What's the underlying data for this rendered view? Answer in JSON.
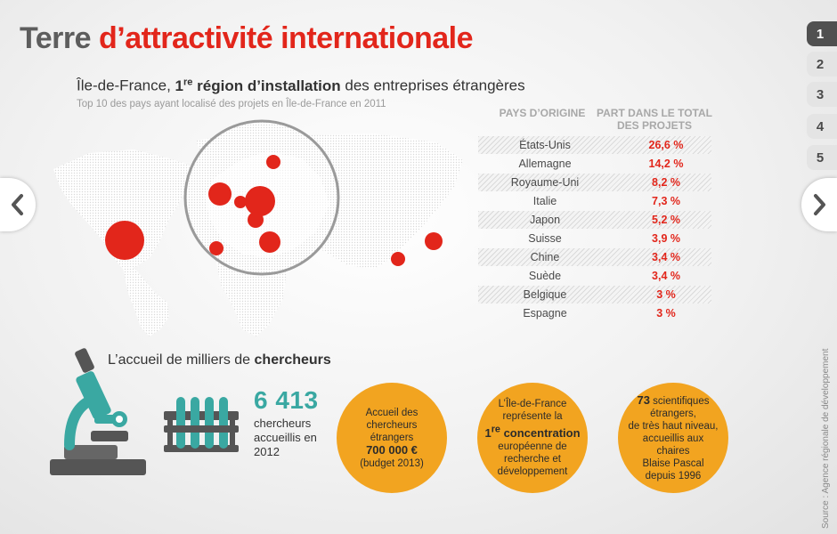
{
  "title": {
    "part1": "Terre ",
    "part2": "d’attractivité internationale"
  },
  "nav": {
    "tabs": [
      "1",
      "2",
      "3",
      "4",
      "5"
    ],
    "active_tab": "1"
  },
  "map_section": {
    "heading_before": "Île-de-France, ",
    "heading_num": "1",
    "heading_sup": "re",
    "heading_bold": " région d’installation",
    "heading_after": " des entreprises étrangères",
    "subtitle": "Top 10 des pays ayant localisé des projets en Île-de-France en 2011"
  },
  "table": {
    "header_country": "PAYS D’ORIGINE",
    "header_share": "PART DANS LE TOTAL DES PROJETS",
    "rows": [
      {
        "country": "États-Unis",
        "share": "26,6 %"
      },
      {
        "country": "Allemagne",
        "share": "14,2 %"
      },
      {
        "country": "Royaume-Uni",
        "share": "8,2 %"
      },
      {
        "country": "Italie",
        "share": "7,3 %"
      },
      {
        "country": "Japon",
        "share": "5,2 %"
      },
      {
        "country": "Suisse",
        "share": "3,9 %"
      },
      {
        "country": "Chine",
        "share": "3,4 %"
      },
      {
        "country": "Suède",
        "share": "3,4 %"
      },
      {
        "country": "Belgique",
        "share": "3 %"
      },
      {
        "country": "Espagne",
        "share": "3 %"
      }
    ]
  },
  "research": {
    "heading_normal": "L’accueil de milliers de ",
    "heading_bold": "chercheurs",
    "count": "6 413",
    "count_desc": "chercheurs accueillis en 2012"
  },
  "circles": [
    {
      "line1": "Accueil des",
      "line2": "chercheurs",
      "line3": "étrangers",
      "bold": "700 000 €",
      "line4": "(budget 2013)"
    },
    {
      "line1": "L’Île-de-France",
      "line2": "représente la",
      "num": "1",
      "sup": "re",
      "bold": " concentration",
      "line3": "européenne de",
      "line4": "recherche et",
      "line5": "développement"
    },
    {
      "bold": "73",
      "line1": " scientifiques",
      "line2": "étrangers,",
      "line3": "de très haut niveau,",
      "line4": "accueillis aux chaires",
      "line5": "Blaise Pascal",
      "line6": "depuis 1996"
    }
  ],
  "source": "Source : Agence régionale de développement",
  "colors": {
    "accent_red": "#e2261b",
    "orange": "#f2a420",
    "teal": "#3aa8a2",
    "dark_grey": "#505050"
  },
  "icons": [
    "chevron-left-icon",
    "chevron-right-icon",
    "world-map",
    "microscope-icon",
    "test-tubes-icon"
  ]
}
